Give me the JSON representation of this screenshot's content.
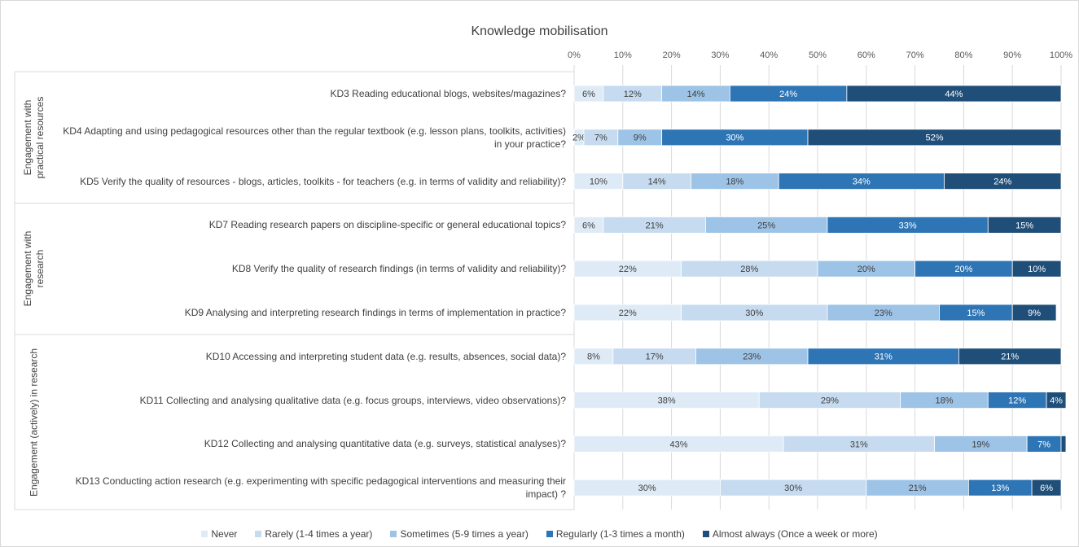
{
  "chart_data": {
    "type": "bar",
    "orientation": "horizontal",
    "stacked": true,
    "title": "Knowledge mobilisation",
    "groups": [
      {
        "name": "Engagement with practical resources",
        "categories": [
          "KD3 Reading educational blogs, websites/magazines?",
          "KD4 Adapting and using pedagogical resources other than the regular textbook (e.g. lesson plans, toolkits, activities) in your practice?",
          "KD5 Verify the quality of resources - blogs, articles, toolkits - for teachers (e.g. in terms of validity and reliability)?"
        ]
      },
      {
        "name": "Engagement with research",
        "categories": [
          "KD7 Reading research papers on discipline-specific or general educational topics?",
          "KD8 Verify the quality of research findings (in terms of validity and reliability)?",
          "KD9 Analysing and interpreting research findings in terms of implementation in practice?"
        ]
      },
      {
        "name": "Engagement (actively) in research",
        "categories": [
          "KD10 Accessing and interpreting student data (e.g. results, absences, social data)?",
          "KD11 Collecting and analysing qualitative data (e.g. focus groups, interviews, video observations)?",
          "KD12 Collecting and analysing quantitative data (e.g. surveys, statistical analyses)?",
          "KD13 Conducting action research (e.g. experimenting with specific pedagogical interventions and measuring their impact) ?"
        ]
      }
    ],
    "series": [
      {
        "name": "Never",
        "color": "#deebf7",
        "values": [
          6,
          2,
          10,
          6,
          22,
          22,
          8,
          38,
          43,
          30
        ],
        "value_labels": [
          "6%",
          "2%",
          "10%",
          "6%",
          "22%",
          "22%",
          "8%",
          "38%",
          "43%",
          "30%"
        ]
      },
      {
        "name": "Rarely (1-4 times a year)",
        "color": "#c6dbef",
        "values": [
          12,
          7,
          14,
          21,
          28,
          30,
          17,
          29,
          31,
          30
        ],
        "value_labels": [
          "12%",
          "7%",
          "14%",
          "21%",
          "28%",
          "30%",
          "17%",
          "29%",
          "31%",
          "30%"
        ]
      },
      {
        "name": "Sometimes (5-9 times a year)",
        "color": "#9dc3e6",
        "values": [
          14,
          9,
          18,
          25,
          20,
          23,
          23,
          18,
          19,
          21
        ],
        "value_labels": [
          "14%",
          "9%",
          "18%",
          "25%",
          "20%",
          "23%",
          "23%",
          "18%",
          "19%",
          "21%"
        ]
      },
      {
        "name": "Regularly (1-3 times a month)",
        "color": "#2e75b6",
        "values": [
          24,
          30,
          34,
          33,
          20,
          15,
          31,
          12,
          7,
          13
        ],
        "value_labels": [
          "24%",
          "30%",
          "34%",
          "33%",
          "20%",
          "15%",
          "31%",
          "12%",
          "7%",
          "13%"
        ]
      },
      {
        "name": "Almost always (Once a week or more)",
        "color": "#1f4e79",
        "values": [
          44,
          52,
          24,
          15,
          10,
          9,
          21,
          4,
          1,
          6
        ],
        "value_labels": [
          "44%",
          "52%",
          "24%",
          "15%",
          "10%",
          "9%",
          "21%",
          "4%",
          null,
          "6%"
        ]
      }
    ],
    "xlim": [
      0,
      100
    ],
    "xticks": [
      {
        "value": 0,
        "label": "0%"
      },
      {
        "value": 10,
        "label": "10%"
      },
      {
        "value": 20,
        "label": "20%"
      },
      {
        "value": 30,
        "label": "30%"
      },
      {
        "value": 40,
        "label": "40%"
      },
      {
        "value": 50,
        "label": "50%"
      },
      {
        "value": 60,
        "label": "60%"
      },
      {
        "value": 70,
        "label": "70%"
      },
      {
        "value": 80,
        "label": "80%"
      },
      {
        "value": 90,
        "label": "90%"
      },
      {
        "value": 100,
        "label": "100%"
      }
    ],
    "grid": true,
    "legend": "bottom"
  }
}
